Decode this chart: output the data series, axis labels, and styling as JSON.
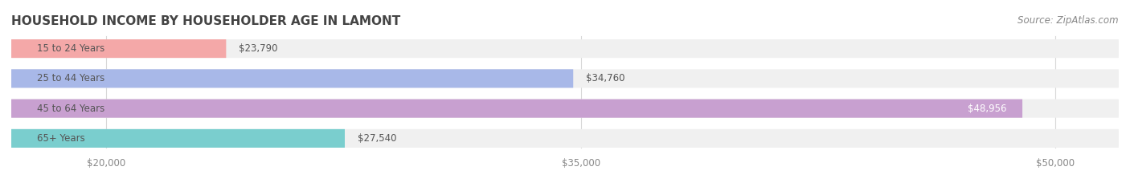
{
  "title": "HOUSEHOLD INCOME BY HOUSEHOLDER AGE IN LAMONT",
  "source": "Source: ZipAtlas.com",
  "categories": [
    "15 to 24 Years",
    "25 to 44 Years",
    "45 to 64 Years",
    "65+ Years"
  ],
  "values": [
    23790,
    34760,
    48956,
    27540
  ],
  "bar_colors": [
    "#f4a8a8",
    "#a8b8e8",
    "#c8a0d0",
    "#7acece"
  ],
  "bar_bg_color": "#f0f0f0",
  "value_labels": [
    "$23,790",
    "$34,760",
    "$48,956",
    "$27,540"
  ],
  "x_ticks": [
    20000,
    35000,
    50000
  ],
  "x_tick_labels": [
    "$20,000",
    "$35,000",
    "$50,000"
  ],
  "xlim_min": 17000,
  "xlim_max": 52000,
  "background_color": "#ffffff",
  "title_fontsize": 11,
  "source_fontsize": 8.5,
  "label_fontsize": 8.5,
  "tick_fontsize": 8.5,
  "bar_height": 0.62,
  "label_color_inside": "#ffffff",
  "label_color_outside": "#555555",
  "grid_color": "#d8d8d8",
  "category_label_color": "#555555"
}
